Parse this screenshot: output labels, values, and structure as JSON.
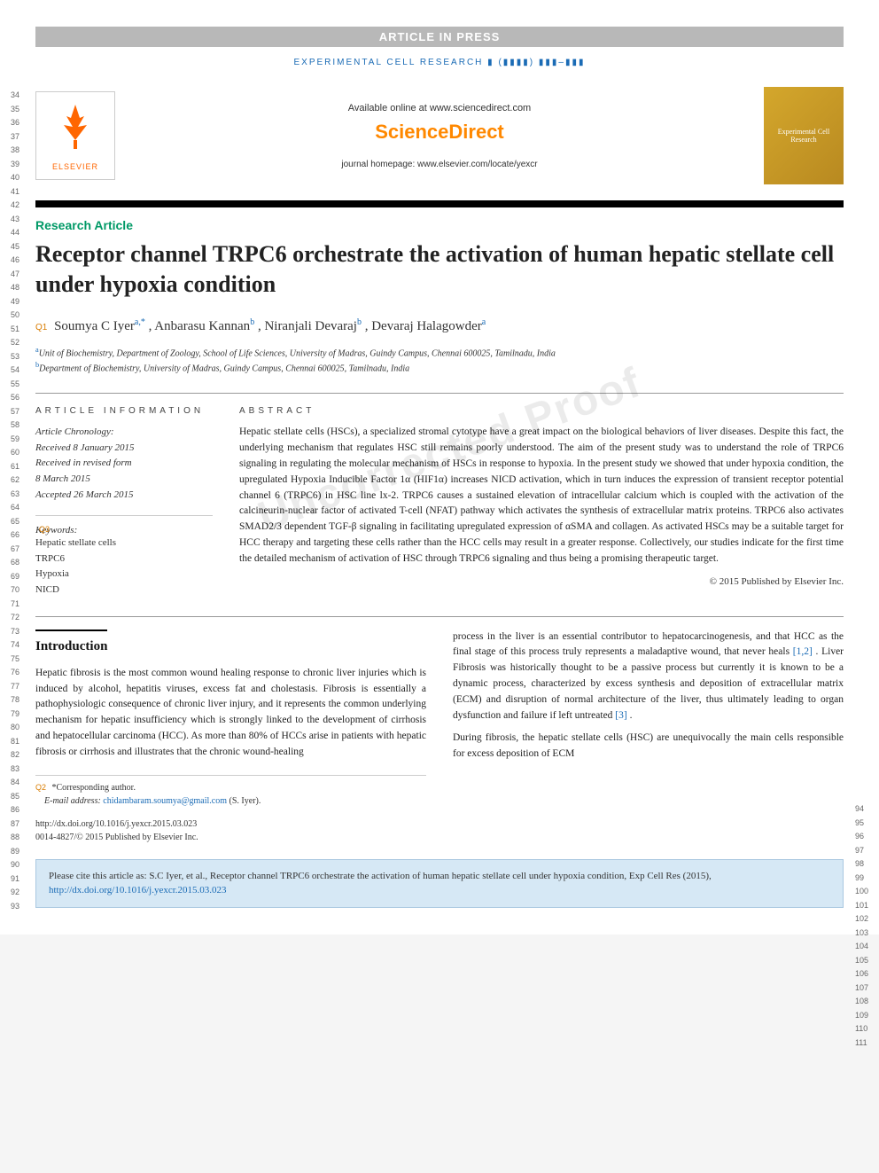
{
  "banner": "ARTICLE IN PRESS",
  "journal_ref": "EXPERIMENTAL CELL RESEARCH ▮ (▮▮▮▮) ▮▮▮–▮▮▮",
  "header": {
    "available": "Available online at www.sciencedirect.com",
    "sciencedirect": "ScienceDirect",
    "homepage": "journal homepage: www.elsevier.com/locate/yexcr",
    "elsevier": "ELSEVIER",
    "cover": "Experimental Cell Research"
  },
  "article_type": "Research Article",
  "title": "Receptor channel TRPC6 orchestrate the activation of human hepatic stellate cell under hypoxia condition",
  "authors": {
    "q_label": "Q1",
    "list": "Soumya C Iyer",
    "a1_sup": "a,",
    "a1_ast": "*",
    "a2": ", Anbarasu Kannan",
    "a2_sup": "b",
    "a3": ", Niranjali Devaraj",
    "a3_sup": "b",
    "a4": ", Devaraj Halagowder",
    "a4_sup": "a"
  },
  "affiliations": {
    "a": "Unit of Biochemistry, Department of Zoology, School of Life Sciences, University of Madras, Guindy Campus, Chennai 600025, Tamilnadu, India",
    "b": "Department of Biochemistry, University of Madras, Guindy Campus, Chennai 600025, Tamilnadu, India"
  },
  "info_labels": {
    "article_info": "ARTICLE INFORMATION",
    "abstract": "ABSTRACT"
  },
  "chronology": {
    "label": "Article Chronology:",
    "l1": "Received 8 January 2015",
    "l2": "Received in revised form",
    "l3": "8 March 2015",
    "l4": "Accepted 26 March 2015"
  },
  "keywords": {
    "q_label": "Q3",
    "label": "Keywords:",
    "k1": "Hepatic stellate cells",
    "k2": "TRPC6",
    "k3": "Hypoxia",
    "k4": "NICD"
  },
  "abstract": "Hepatic stellate cells (HSCs), a specialized stromal cytotype have a great impact on the biological behaviors of liver diseases. Despite this fact, the underlying mechanism that regulates HSC still remains poorly understood. The aim of the present study was to understand the role of TRPC6 signaling in regulating the molecular mechanism of HSCs in response to hypoxia. In the present study we showed that under hypoxia condition, the upregulated Hypoxia Inducible Factor 1α (HIF1α) increases NICD activation, which in turn induces the expression of transient receptor potential channel 6 (TRPC6) in HSC line lx-2. TRPC6 causes a sustained elevation of intracellular calcium which is coupled with the activation of the calcineurin-nuclear factor of activated T-cell (NFAT) pathway which activates the synthesis of extracellular matrix proteins. TRPC6 also activates SMAD2/3 dependent TGF-β signaling in facilitating upregulated expression of αSMA and collagen. As activated HSCs may be a suitable target for HCC therapy and targeting these cells rather than the HCC cells may result in a greater response. Collectively, our studies indicate for the first time the detailed mechanism of activation of HSC through TRPC6 signaling and thus being a promising therapeutic target.",
  "copyright": "© 2015 Published by Elsevier Inc.",
  "watermark": "Uncorrected Proof",
  "intro_heading": "Introduction",
  "body": {
    "col1_p1": "Hepatic fibrosis is the most common wound healing response to chronic liver injuries which is induced by alcohol, hepatitis viruses, excess fat and cholestasis. Fibrosis is essentially a pathophysiologic consequence of chronic liver injury, and it represents the common underlying mechanism for hepatic insufficiency which is strongly linked to the development of cirrhosis and hepatocellular carcinoma (HCC). As more than 80% of HCCs arise in patients with hepatic fibrosis or cirrhosis and illustrates that the chronic wound-healing",
    "col2_p1_a": "process in the liver is an essential contributor to hepatocarcinogenesis, and that HCC as the final stage of this process truly represents a maladaptive wound, that never heals ",
    "col2_p1_ref1": "[1,2]",
    "col2_p1_b": ". Liver Fibrosis was historically thought to be a passive process but currently it is known to be a dynamic process, characterized by excess synthesis and deposition of extracellular matrix (ECM) and disruption of normal architecture of the liver, thus ultimately leading to organ dysfunction and failure if left untreated ",
    "col2_p1_ref2": "[3]",
    "col2_p1_c": ".",
    "col2_p2": "During fibrosis, the hepatic stellate cells (HSC) are unequivocally the main cells responsible for excess deposition of ECM"
  },
  "footnote": {
    "q_label": "Q2",
    "corr": "*Corresponding author.",
    "email_label": "E-mail address: ",
    "email": "chidambaram.soumya@gmail.com",
    "email_suffix": " (S. Iyer)."
  },
  "doi": {
    "url": "http://dx.doi.org/10.1016/j.yexcr.2015.03.023",
    "issn": "0014-4827/© 2015 Published by Elsevier Inc."
  },
  "cite": {
    "text": "Please cite this article as: S.C Iyer, et al., Receptor channel TRPC6 orchestrate the activation of human hepatic stellate cell under hypoxia condition, Exp Cell Res (2015), ",
    "doi": "http://dx.doi.org/10.1016/j.yexcr.2015.03.023"
  },
  "line_numbers": {
    "left_start": 34,
    "left_end": 93,
    "right_start": 94,
    "right_end": 111
  },
  "colors": {
    "banner_bg": "#b8b8b8",
    "link": "#1a6bb5",
    "orange": "#ff8800",
    "green": "#009966",
    "q_orange": "#d97c00",
    "cite_bg": "#d6e8f5"
  }
}
